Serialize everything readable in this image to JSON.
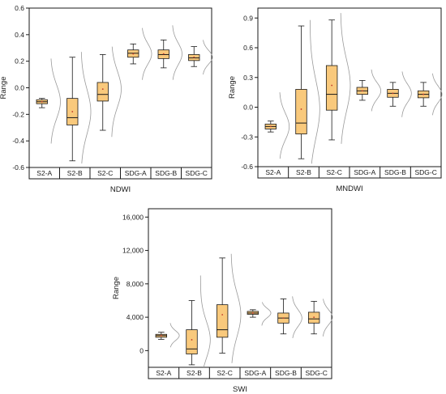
{
  "colors": {
    "box_fill": "#f9c97c",
    "box_stroke": "#1a1a1a",
    "median": "#1a1a1a",
    "mean": "#c0392b",
    "curve": "#9a9a9a",
    "frame": "#1a1a1a"
  },
  "chart_data": [
    {
      "type": "box",
      "xlabel": "NDWI",
      "ylabel": "Range",
      "ylim": [
        -0.6,
        0.6
      ],
      "yticks": [
        -0.6,
        -0.4,
        -0.2,
        0,
        0.2,
        0.4,
        0.6
      ],
      "ytick_labels": [
        "-0.6",
        "-0.4",
        "-0.2",
        "0.0",
        "0.2",
        "0.4",
        "0.6"
      ],
      "categories": [
        "S2-A",
        "S2-B",
        "S2-C",
        "SDG-A",
        "SDG-B",
        "SDG-C"
      ],
      "boxes": [
        {
          "min": -0.15,
          "q1": -0.12,
          "median": -0.105,
          "q3": -0.09,
          "max": -0.08,
          "mean": -0.105,
          "curve_lo": -0.42,
          "curve_hi": 0.22
        },
        {
          "min": -0.55,
          "q1": -0.28,
          "median": -0.225,
          "q3": -0.08,
          "max": 0.23,
          "mean": -0.18,
          "curve_lo": -0.57,
          "curve_hi": 0.27
        },
        {
          "min": -0.32,
          "q1": -0.1,
          "median": -0.05,
          "q3": 0.04,
          "max": 0.25,
          "mean": -0.01,
          "curve_lo": -0.37,
          "curve_hi": 0.31
        },
        {
          "min": 0.18,
          "q1": 0.23,
          "median": 0.26,
          "q3": 0.285,
          "max": 0.33,
          "mean": 0.255,
          "curve_lo": 0.06,
          "curve_hi": 0.45
        },
        {
          "min": 0.15,
          "q1": 0.22,
          "median": 0.25,
          "q3": 0.285,
          "max": 0.36,
          "mean": 0.255,
          "curve_lo": 0.06,
          "curve_hi": 0.47
        },
        {
          "min": 0.16,
          "q1": 0.205,
          "median": 0.225,
          "q3": 0.25,
          "max": 0.31,
          "mean": 0.23,
          "curve_lo": 0.1,
          "curve_hi": 0.36
        }
      ]
    },
    {
      "type": "box",
      "xlabel": "MNDWI",
      "ylabel": "Range",
      "ylim": [
        -0.6,
        1.0
      ],
      "yticks": [
        -0.6,
        -0.3,
        0,
        0.3,
        0.6,
        0.9
      ],
      "ytick_labels": [
        "-0.6",
        "-0.3",
        "0.0",
        "0.3",
        "0.6",
        "0.9"
      ],
      "categories": [
        "S2-A",
        "S2-B",
        "S2-C",
        "SDG-A",
        "SDG-B",
        "SDG-C"
      ],
      "boxes": [
        {
          "min": -0.25,
          "q1": -0.22,
          "median": -0.195,
          "q3": -0.17,
          "max": -0.14,
          "mean": -0.195,
          "curve_lo": -0.52,
          "curve_hi": 0.15
        },
        {
          "min": -0.52,
          "q1": -0.27,
          "median": -0.16,
          "q3": 0.18,
          "max": 0.82,
          "mean": -0.02,
          "curve_lo": -0.57,
          "curve_hi": 0.88
        },
        {
          "min": -0.33,
          "q1": -0.03,
          "median": 0.13,
          "q3": 0.42,
          "max": 0.88,
          "mean": 0.22,
          "curve_lo": -0.37,
          "curve_hi": 0.95
        },
        {
          "min": 0.07,
          "q1": 0.13,
          "median": 0.165,
          "q3": 0.2,
          "max": 0.27,
          "mean": 0.165,
          "curve_lo": -0.04,
          "curve_hi": 0.38
        },
        {
          "min": 0.01,
          "q1": 0.1,
          "median": 0.14,
          "q3": 0.18,
          "max": 0.25,
          "mean": 0.14,
          "curve_lo": -0.1,
          "curve_hi": 0.36
        },
        {
          "min": 0.01,
          "q1": 0.095,
          "median": 0.13,
          "q3": 0.165,
          "max": 0.25,
          "mean": 0.13,
          "curve_lo": -0.08,
          "curve_hi": 0.34
        }
      ]
    },
    {
      "type": "box",
      "xlabel": "SWI",
      "ylabel": "Range",
      "ylim": [
        -2000,
        17000
      ],
      "yticks": [
        0,
        4000,
        8000,
        12000,
        16000
      ],
      "ytick_labels": [
        "0",
        "4,000",
        "8,000",
        "12,000",
        "16,000"
      ],
      "categories": [
        "S2-A",
        "S2-B",
        "S2-C",
        "SDG-A",
        "SDG-B",
        "SDG-C"
      ],
      "boxes": [
        {
          "min": 1350,
          "q1": 1600,
          "median": 1800,
          "q3": 1950,
          "max": 2200,
          "mean": 1800,
          "curve_lo": 400,
          "curve_hi": 3300
        },
        {
          "min": -1700,
          "q1": -400,
          "median": 200,
          "q3": 2500,
          "max": 6000,
          "mean": 1300,
          "curve_lo": -2000,
          "curve_hi": 9000
        },
        {
          "min": -300,
          "q1": 1600,
          "median": 2500,
          "q3": 5500,
          "max": 11100,
          "mean": 4300,
          "curve_lo": -1500,
          "curve_hi": 11600
        },
        {
          "min": 4000,
          "q1": 4350,
          "median": 4500,
          "q3": 4700,
          "max": 4900,
          "mean": 4500,
          "curve_lo": 3000,
          "curve_hi": 5800
        },
        {
          "min": 2000,
          "q1": 3300,
          "median": 3900,
          "q3": 4500,
          "max": 6200,
          "mean": 3900,
          "curve_lo": 1500,
          "curve_hi": 6500
        },
        {
          "min": 2000,
          "q1": 3300,
          "median": 3800,
          "q3": 4600,
          "max": 5900,
          "mean": 4000,
          "curve_lo": 1700,
          "curve_hi": 6200
        }
      ]
    }
  ]
}
